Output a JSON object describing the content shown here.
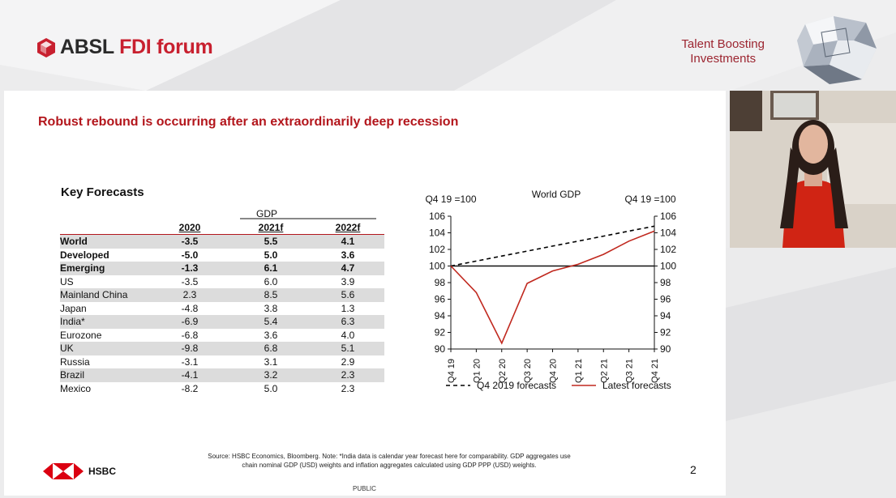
{
  "header": {
    "logo_prefix": "ABSL",
    "logo_accent": "FDI forum",
    "talent_line1": "Talent Boosting",
    "talent_line2": "Investments"
  },
  "slide": {
    "title": "Robust rebound is occurring after an extraordinarily deep recession",
    "table_title": "Key Forecasts",
    "gdp_header": "GDP",
    "col_headers": [
      "2020",
      "2021f",
      "2022f"
    ],
    "rows": [
      {
        "label": "World",
        "v2020": "-3.5",
        "v2021": "5.5",
        "v2022": "4.1",
        "bold": true
      },
      {
        "label": "Developed",
        "v2020": "-5.0",
        "v2021": "5.0",
        "v2022": "3.6",
        "bold": true
      },
      {
        "label": "Emerging",
        "v2020": "-1.3",
        "v2021": "6.1",
        "v2022": "4.7",
        "bold": true
      },
      {
        "label": "US",
        "v2020": "-3.5",
        "v2021": "6.0",
        "v2022": "3.9",
        "bold": false
      },
      {
        "label": "Mainland China",
        "v2020": "2.3",
        "v2021": "8.5",
        "v2022": "5.6",
        "bold": false
      },
      {
        "label": "Japan",
        "v2020": "-4.8",
        "v2021": "3.8",
        "v2022": "1.3",
        "bold": false
      },
      {
        "label": "India*",
        "v2020": "-6.9",
        "v2021": "5.4",
        "v2022": "6.3",
        "bold": false
      },
      {
        "label": "Eurozone",
        "v2020": "-6.8",
        "v2021": "3.6",
        "v2022": "4.0",
        "bold": false
      },
      {
        "label": "UK",
        "v2020": "-9.8",
        "v2021": "6.8",
        "v2022": "5.1",
        "bold": false
      },
      {
        "label": "Russia",
        "v2020": "-3.1",
        "v2021": "3.1",
        "v2022": "2.9",
        "bold": false
      },
      {
        "label": "Brazil",
        "v2020": "-4.1",
        "v2021": "3.2",
        "v2022": "2.3",
        "bold": false
      },
      {
        "label": "Mexico",
        "v2020": "-8.2",
        "v2021": "5.0",
        "v2022": "2.3",
        "bold": false
      }
    ],
    "source_line1": "Source: HSBC Economics, Bloomberg. Note: *India data is calendar year forecast here for comparability. GDP aggregates use",
    "source_line2": "chain nominal GDP (USD) weights and inflation aggregates calculated using GDP PPP (USD) weights.",
    "page_number": "2",
    "classification": "PUBLIC",
    "hsbc_label": "HSBC"
  },
  "chart_data": {
    "type": "line",
    "title": "World GDP",
    "ylabel_left": "Q4 19 =100",
    "ylabel_right": "Q4 19 =100",
    "categories": [
      "Q4 19",
      "Q1 20",
      "Q2 20",
      "Q3 20",
      "Q4 20",
      "Q1 21",
      "Q2 21",
      "Q3 21",
      "Q4 21"
    ],
    "ylim": [
      90,
      106
    ],
    "yticks": [
      90,
      92,
      94,
      96,
      98,
      100,
      102,
      104,
      106
    ],
    "reference_line": 100,
    "series": [
      {
        "name": "Q4 2019 forecasts",
        "style": "dashed",
        "color": "#000000",
        "values": [
          100,
          100.6,
          101.2,
          101.8,
          102.4,
          103.0,
          103.6,
          104.2,
          104.8
        ]
      },
      {
        "name": "Latest forecasts",
        "style": "solid",
        "color": "#c0281e",
        "values": [
          100,
          96.8,
          90.7,
          97.9,
          99.4,
          100.2,
          101.4,
          103.0,
          104.2
        ]
      }
    ],
    "legend_position": "bottom"
  },
  "colors": {
    "brand_red": "#c8202f",
    "title_red": "#b3161c",
    "latest_line": "#c0281e"
  }
}
